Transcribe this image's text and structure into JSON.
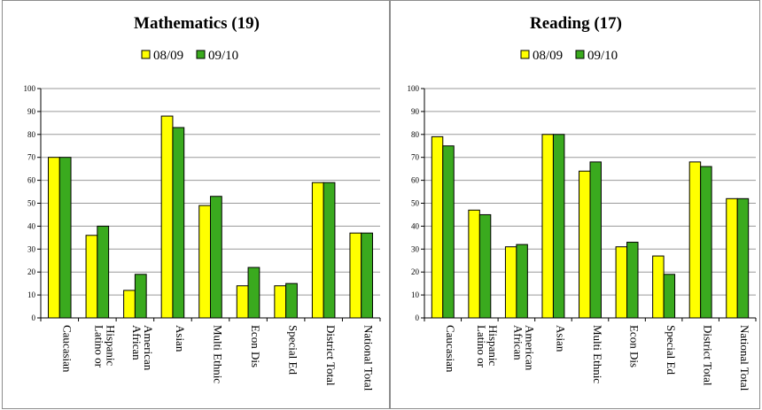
{
  "chart_data": [
    {
      "type": "bar",
      "title": "Mathematics (19)",
      "categories": [
        "Caucasian",
        "Latino or Hispanic",
        "African American",
        "Asian",
        "Multi Ethnic",
        "Econ Dis",
        "Special Ed",
        "District Total",
        "National Total"
      ],
      "category_lines": [
        [
          "Caucasian"
        ],
        [
          "Latino or",
          "Hispanic"
        ],
        [
          "African",
          "American"
        ],
        [
          "Asian"
        ],
        [
          "Multi Ethnic"
        ],
        [
          "Econ Dis"
        ],
        [
          "Special Ed"
        ],
        [
          "District Total"
        ],
        [
          "National Total"
        ]
      ],
      "series": [
        {
          "name": "08/09",
          "values": [
            70,
            36,
            12,
            88,
            49,
            14,
            14,
            59,
            37
          ]
        },
        {
          "name": "09/10",
          "values": [
            70,
            40,
            19,
            83,
            53,
            22,
            15,
            59,
            37
          ]
        }
      ],
      "ylim": [
        0,
        100
      ],
      "yticks": [
        0,
        10,
        20,
        30,
        40,
        50,
        60,
        70,
        80,
        90,
        100
      ],
      "grid": true,
      "legend_position": "top-center",
      "colors": [
        "#ffff00",
        "#3aaa1e"
      ]
    },
    {
      "type": "bar",
      "title": "Reading (17)",
      "categories": [
        "Caucasian",
        "Latino or Hispanic",
        "African American",
        "Asian",
        "Multi Ethnic",
        "Econ Dis",
        "Special Ed",
        "District Total",
        "National Total"
      ],
      "category_lines": [
        [
          "Caucasian"
        ],
        [
          "Latino or",
          "Hispanic"
        ],
        [
          "African",
          "American"
        ],
        [
          "Asian"
        ],
        [
          "Multi Ethnic"
        ],
        [
          "Econ Dis"
        ],
        [
          "Special Ed"
        ],
        [
          "District Total"
        ],
        [
          "National Total"
        ]
      ],
      "series": [
        {
          "name": "08/09",
          "values": [
            79,
            47,
            31,
            80,
            64,
            31,
            27,
            68,
            52
          ]
        },
        {
          "name": "09/10",
          "values": [
            75,
            45,
            32,
            80,
            68,
            33,
            19,
            66,
            52
          ]
        }
      ],
      "ylim": [
        0,
        100
      ],
      "yticks": [
        0,
        10,
        20,
        30,
        40,
        50,
        60,
        70,
        80,
        90,
        100
      ],
      "grid": true,
      "legend_position": "top-center",
      "colors": [
        "#ffff00",
        "#3aaa1e"
      ]
    }
  ]
}
